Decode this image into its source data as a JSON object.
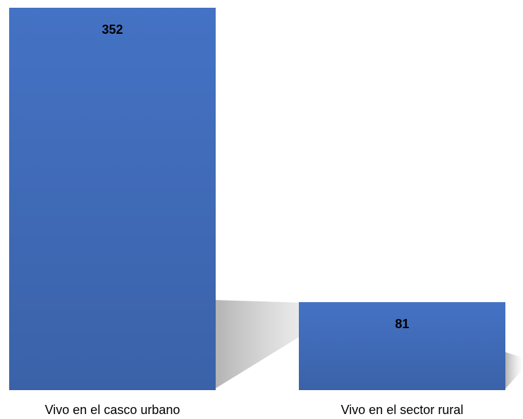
{
  "chart_data": {
    "type": "bar",
    "categories": [
      "Vivo en el casco urbano",
      "Vivo en el sector rural"
    ],
    "values": [
      352,
      81
    ],
    "color": "#4472c4"
  }
}
